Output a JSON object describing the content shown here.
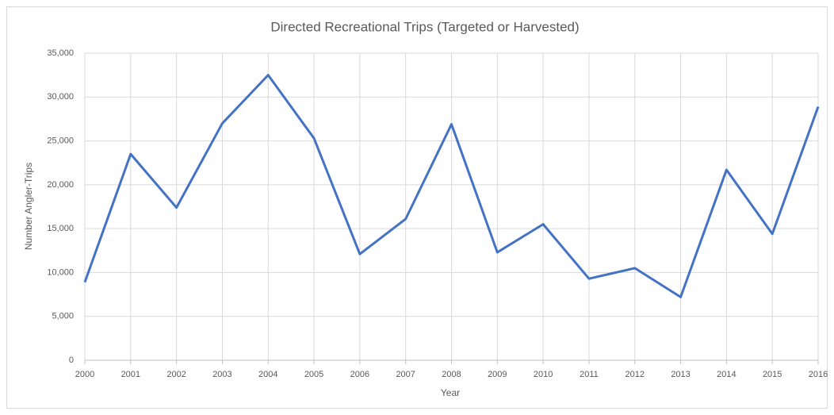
{
  "chart_data": {
    "type": "line",
    "title": "Directed Recreational Trips (Targeted or Harvested)",
    "x_label": "Year",
    "y_label": "Number Angler-Trips",
    "x": [
      2000,
      2001,
      2002,
      2003,
      2004,
      2005,
      2006,
      2007,
      2008,
      2009,
      2010,
      2011,
      2012,
      2013,
      2014,
      2015,
      2016
    ],
    "series": [
      {
        "name": "Directed Recreational Trips",
        "color": "#4472c4",
        "values": [
          8900,
          23500,
          17400,
          27000,
          32500,
          25300,
          12100,
          16100,
          26900,
          12300,
          15500,
          9300,
          10500,
          7200,
          21700,
          14400,
          28900
        ]
      }
    ],
    "xlim": [
      2000,
      2016
    ],
    "xticks": [
      2000,
      2001,
      2002,
      2003,
      2004,
      2005,
      2006,
      2007,
      2008,
      2009,
      2010,
      2011,
      2012,
      2013,
      2014,
      2015,
      2016
    ],
    "ylim": [
      0,
      35000
    ],
    "yticks": [
      0,
      {
        "value": 5000,
        "label": "5,000"
      },
      {
        "value": 10000,
        "label": "10,000"
      },
      {
        "value": 15000,
        "label": "15,000"
      },
      {
        "value": 20000,
        "label": "20,000"
      },
      {
        "value": 25000,
        "label": "25,000"
      },
      {
        "value": 30000,
        "label": "30,000"
      },
      {
        "value": 35000,
        "label": "35,000"
      }
    ],
    "grid": true
  }
}
